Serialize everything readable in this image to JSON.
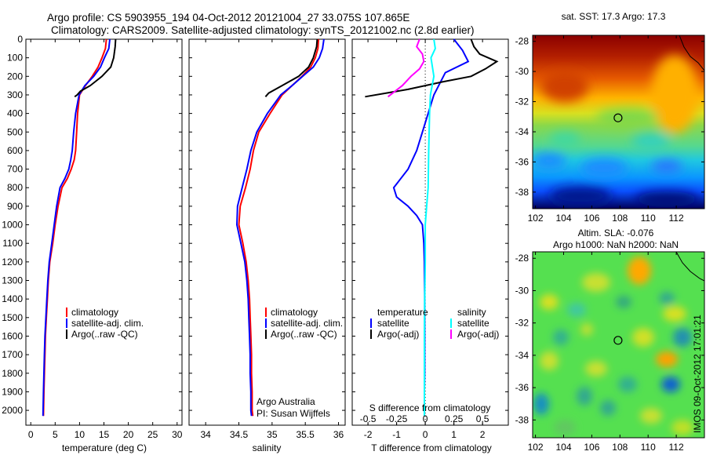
{
  "title_line1": "Argo profile: CS 5903955_194 04-Oct-2012 20121004_27 33.075S 107.865E",
  "title_line2": "Climatology: CARS2009. Satellite-adjusted climatology: synTS_20121002.nc (2.8d earlier)",
  "timestamp": "IMOS 09-Oct-2012 17:01:21",
  "colors": {
    "climatology": "#ff0000",
    "satellite": "#0000ff",
    "argo": "#000000",
    "sal_satellite": "#00ffff",
    "sal_argo": "#ff00ff"
  },
  "chart_data": [
    {
      "type": "line",
      "panel": "temperature",
      "xlabel": "temperature (deg C)",
      "ylabel": "",
      "xlim": [
        -1,
        31
      ],
      "ylim": [
        2080,
        0
      ],
      "x_ticks": [
        0,
        5,
        10,
        15,
        20,
        25,
        30
      ],
      "y_ticks": [
        0,
        100,
        200,
        300,
        400,
        500,
        600,
        700,
        800,
        900,
        1000,
        1100,
        1200,
        1300,
        1400,
        1500,
        1600,
        1700,
        1800,
        1900,
        2000
      ],
      "legend": [
        "climatology",
        "satellite-adj. clim.",
        "Argo(..raw -QC)"
      ],
      "series": [
        {
          "name": "climatology",
          "color": "#ff0000",
          "x": [
            15.5,
            15.3,
            14.6,
            13.8,
            12.6,
            11.2,
            10.0,
            9.6,
            9.4,
            9.2,
            8.9,
            8.3,
            7.5,
            6.4,
            5.6,
            5.0,
            4.5,
            3.9,
            3.6,
            3.4,
            3.2,
            3.0,
            2.9,
            2.8,
            2.7,
            2.6
          ],
          "y": [
            0,
            50,
            100,
            150,
            200,
            250,
            300,
            400,
            500,
            600,
            650,
            700,
            750,
            800,
            900,
            1000,
            1100,
            1200,
            1300,
            1400,
            1500,
            1600,
            1700,
            1800,
            1900,
            2030
          ]
        },
        {
          "name": "satellite-adj. clim.",
          "color": "#0000ff",
          "x": [
            16.2,
            16.0,
            15.1,
            14.3,
            12.9,
            11.1,
            9.9,
            9.2,
            8.8,
            8.5,
            8.2,
            7.8,
            7.0,
            6.0,
            5.3,
            4.8,
            4.3,
            3.8,
            3.5,
            3.3,
            3.1,
            2.9,
            2.8,
            2.7,
            2.6,
            2.5
          ],
          "y": [
            0,
            50,
            100,
            150,
            200,
            250,
            300,
            400,
            500,
            600,
            650,
            700,
            750,
            800,
            900,
            1000,
            1100,
            1200,
            1300,
            1400,
            1500,
            1600,
            1700,
            1800,
            1900,
            2030
          ]
        },
        {
          "name": "Argo(..raw -QC)",
          "color": "#000000",
          "x": [
            17.4,
            17.3,
            17.0,
            16.4,
            14.6,
            12.2,
            10.2,
            9.5,
            9.0
          ],
          "y": [
            0,
            40,
            100,
            150,
            200,
            250,
            280,
            300,
            310
          ]
        }
      ]
    },
    {
      "type": "line",
      "panel": "salinity",
      "xlabel": "salinity",
      "xlim": [
        33.75,
        36.1
      ],
      "ylim": [
        2080,
        0
      ],
      "x_ticks": [
        34,
        34.5,
        35,
        35.5,
        36
      ],
      "x_tick_labels": [
        "34",
        "34.5",
        "35",
        "35.5",
        "36"
      ],
      "legend": [
        "climatology",
        "satellite-adj. clim.",
        "Argo(..raw -QC)"
      ],
      "annotation": [
        "Argo Australia",
        "PI: Susan Wijffels"
      ],
      "series": [
        {
          "name": "climatology",
          "color": "#ff0000",
          "x": [
            35.7,
            35.69,
            35.65,
            35.58,
            35.45,
            35.3,
            35.15,
            34.97,
            34.8,
            34.72,
            34.67,
            34.6,
            34.52,
            34.5,
            34.56,
            34.61,
            34.64,
            34.66,
            34.67,
            34.68,
            34.69,
            34.69,
            34.7,
            34.7,
            34.71
          ],
          "y": [
            0,
            50,
            100,
            150,
            200,
            250,
            300,
            400,
            500,
            600,
            700,
            800,
            900,
            1000,
            1100,
            1200,
            1300,
            1400,
            1500,
            1600,
            1700,
            1800,
            1900,
            2000,
            2030
          ]
        },
        {
          "name": "satellite-adj. clim.",
          "color": "#0000ff",
          "x": [
            35.78,
            35.76,
            35.71,
            35.62,
            35.46,
            35.3,
            35.13,
            34.93,
            34.77,
            34.68,
            34.62,
            34.55,
            34.48,
            34.47,
            34.53,
            34.59,
            34.62,
            34.64,
            34.65,
            34.66,
            34.67,
            34.67,
            34.68,
            34.68,
            34.69
          ],
          "y": [
            0,
            50,
            100,
            150,
            200,
            250,
            300,
            400,
            500,
            600,
            700,
            800,
            900,
            1000,
            1100,
            1200,
            1300,
            1400,
            1500,
            1600,
            1700,
            1800,
            1900,
            2000,
            2030
          ]
        },
        {
          "name": "Argo(..raw -QC)",
          "color": "#000000",
          "x": [
            35.68,
            35.67,
            35.62,
            35.55,
            35.4,
            35.15,
            34.95,
            34.9
          ],
          "y": [
            0,
            40,
            100,
            150,
            200,
            250,
            290,
            310
          ]
        }
      ]
    },
    {
      "type": "line",
      "panel": "differences",
      "xlabel": "T difference from climatology",
      "x_ticks_T": [
        -2,
        -1,
        0,
        1,
        2
      ],
      "x_ticks_S": [
        -0.5,
        -0.25,
        0,
        0.25,
        0.5
      ],
      "x_tick_labels_S": [
        "-0.5",
        "-0.25",
        "0",
        "0.25",
        "0.5"
      ],
      "s_axis_label": "S difference from climatology",
      "xlim": [
        -2.55,
        2.9
      ],
      "ylim": [
        2080,
        0
      ],
      "legend_temperature_title": "temperature",
      "legend_salinity_title": "salinity",
      "legend_temperature": [
        "satellite",
        "Argo(-adj)"
      ],
      "legend_salinity": [
        "satellite",
        "Argo(-adj)"
      ],
      "series": [
        {
          "name": "temperature satellite",
          "color": "#0000ff",
          "x": [
            1.0,
            1.3,
            1.5,
            0.7,
            0.5,
            0.3,
            0.1,
            -0.1,
            -0.3,
            -0.6,
            -0.9,
            -1.1,
            -1.0,
            -0.6,
            -0.3,
            -0.1,
            -0.05,
            -0.03,
            -0.02,
            -0.02,
            -0.02,
            -0.03,
            -0.03,
            -0.03
          ],
          "y": [
            0,
            60,
            120,
            180,
            240,
            300,
            400,
            500,
            600,
            700,
            760,
            800,
            850,
            900,
            950,
            1000,
            1100,
            1200,
            1400,
            1600,
            1800,
            1900,
            2000,
            2030
          ]
        },
        {
          "name": "temperature Argo(-adj)",
          "color": "#000000",
          "x": [
            1.6,
            1.7,
            1.9,
            2.5,
            2.1,
            1.6,
            0.6,
            -0.6,
            -2.1
          ],
          "y": [
            0,
            40,
            80,
            120,
            160,
            200,
            230,
            270,
            310
          ]
        },
        {
          "name": "salinity satellite",
          "color": "#00ffff",
          "x": [
            0.3,
            0.35,
            0.2,
            0.3,
            0.18,
            0.15,
            0.12,
            0.1,
            0.05,
            0.0,
            0.0,
            -0.02,
            -0.03,
            -0.03,
            -0.03
          ],
          "y": [
            0,
            50,
            100,
            200,
            300,
            400,
            600,
            800,
            900,
            1000,
            1200,
            1400,
            1600,
            1800,
            2030
          ]
        },
        {
          "name": "salinity Argo(-adj)",
          "color": "#ff00ff",
          "x": [
            -0.2,
            -0.3,
            -0.1,
            -0.05,
            -0.2,
            -0.5,
            -0.8,
            -1.3
          ],
          "y": [
            0,
            40,
            80,
            120,
            160,
            200,
            250,
            310
          ]
        }
      ]
    },
    {
      "type": "heatmap",
      "panel": "sst_map",
      "title": "sat. SST: 17.3 Argo: 17.3",
      "x_ticks": [
        102,
        104,
        106,
        108,
        110,
        112
      ],
      "y_ticks": [
        -28,
        -30,
        -32,
        -34,
        -36,
        -38
      ],
      "xlim": [
        101.8,
        114
      ],
      "ylim": [
        -39.1,
        -27.6
      ],
      "marker": {
        "lon": 107.865,
        "lat": -33.075
      }
    },
    {
      "type": "heatmap",
      "panel": "sla_map",
      "title_line1": "Altim. SLA: -0.076",
      "title_line2": "Argo h1000: NaN h2000: NaN",
      "x_ticks": [
        102,
        104,
        106,
        108,
        110,
        112
      ],
      "y_ticks": [
        -28,
        -30,
        -32,
        -34,
        -36,
        -38
      ],
      "xlim": [
        101.8,
        114
      ],
      "ylim": [
        -39.1,
        -27.6
      ],
      "marker": {
        "lon": 107.865,
        "lat": -33.075
      }
    }
  ]
}
